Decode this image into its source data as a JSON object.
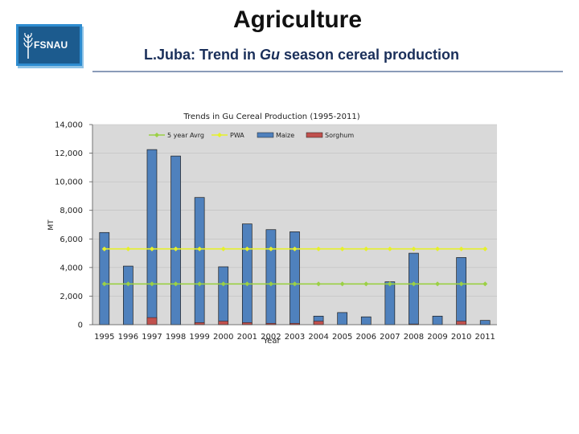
{
  "slide": {
    "title": "Agriculture",
    "subtitle_part1": "L.Juba: Trend in ",
    "subtitle_italic": "Gu",
    "subtitle_part2": " season cereal production",
    "logo_text": "FSNAU",
    "colors": {
      "title": "#111111",
      "subtitle": "#1a2f5a",
      "logo_bg": "#1c5b8e",
      "rule": "#8a9bb8"
    }
  },
  "chart_data": {
    "type": "bar",
    "title": "Trends in Gu Cereal Production  (1995-2011)",
    "xlabel": "Year",
    "ylabel": "MT",
    "ylim": [
      0,
      14000
    ],
    "yticks": [
      0,
      2000,
      4000,
      6000,
      8000,
      10000,
      12000,
      14000
    ],
    "ytick_labels": [
      "0",
      "2,000",
      "4,000",
      "6,000",
      "8,000",
      "10,000",
      "12,000",
      "14,000"
    ],
    "categories": [
      "1995",
      "1996",
      "1997",
      "1998",
      "1999",
      "2000",
      "2001",
      "2002",
      "2003",
      "2004",
      "2005",
      "2006",
      "2007",
      "2008",
      "2009",
      "2010",
      "2011"
    ],
    "legend": [
      "5 year Avrg",
      "PWA",
      "Maize",
      "Sorghum"
    ],
    "series": [
      {
        "name": "Maize",
        "kind": "bar",
        "color": "#4f81bd",
        "values": [
          6450,
          4100,
          12250,
          11800,
          8900,
          4050,
          7050,
          6650,
          6500,
          600,
          850,
          550,
          3000,
          5000,
          600,
          4700,
          300
        ]
      },
      {
        "name": "Sorghum",
        "kind": "bar",
        "color": "#c0504d",
        "values": [
          0,
          0,
          500,
          0,
          150,
          250,
          150,
          100,
          100,
          250,
          0,
          0,
          0,
          50,
          0,
          250,
          0
        ]
      },
      {
        "name": "PWA",
        "kind": "line",
        "color": "#e6f02a",
        "values": [
          5300,
          5300,
          5300,
          5300,
          5300,
          5300,
          5300,
          5300,
          5300,
          5300,
          5300,
          5300,
          5300,
          5300,
          5300,
          5300,
          5300
        ]
      },
      {
        "name": "5 year Avrg",
        "kind": "line",
        "color": "#9bd045",
        "values": [
          2850,
          2850,
          2850,
          2850,
          2850,
          2850,
          2850,
          2850,
          2850,
          2850,
          2850,
          2850,
          2850,
          2850,
          2850,
          2850,
          2850
        ]
      }
    ]
  }
}
